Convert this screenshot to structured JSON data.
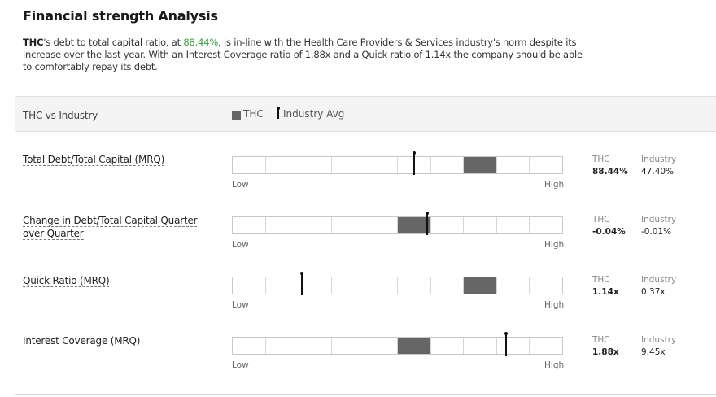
{
  "title": "Financial strength Analysis",
  "summary": {
    "ticker": "THC",
    "part1": "'s debt to total capital ratio, at ",
    "highlight": "88.44%",
    "part2": ", is in-line with the Health Care Providers & Services industry's norm despite its increase over the last year. With an Interest Coverage ratio of 1.88x and a Quick ratio of 1.14x the company should be able to comfortably repay its debt."
  },
  "header": {
    "label": "THC vs Industry",
    "legend_company": "THC",
    "legend_industry": "Industry Avg"
  },
  "scale": {
    "low": "Low",
    "high": "High",
    "segments": 10
  },
  "colors": {
    "company_bar": "#666666",
    "industry_marker": "#111111",
    "highlight": "#3aa03a"
  },
  "metrics": [
    {
      "label": "Total Debt/Total Capital (MRQ)",
      "company_head": "THC",
      "industry_head": "Industry",
      "company_value": "88.44%",
      "industry_value": "47.40%",
      "company_segment": 7,
      "industry_marker": 0.55
    },
    {
      "label": "Change in Debt/Total Capital Quarter over Quarter",
      "company_head": "THC",
      "industry_head": "Industry",
      "company_value": "-0.04%",
      "industry_value": "-0.01%",
      "company_segment": 5,
      "industry_marker": 0.59
    },
    {
      "label": "Quick Ratio (MRQ)",
      "company_head": "THC",
      "industry_head": "Industry",
      "company_value": "1.14x",
      "industry_value": "0.37x",
      "company_segment": 7,
      "industry_marker": 0.21
    },
    {
      "label": "Interest Coverage (MRQ)",
      "company_head": "THC",
      "industry_head": "Industry",
      "company_value": "1.88x",
      "industry_value": "9.45x",
      "company_segment": 5,
      "industry_marker": 0.83
    }
  ]
}
